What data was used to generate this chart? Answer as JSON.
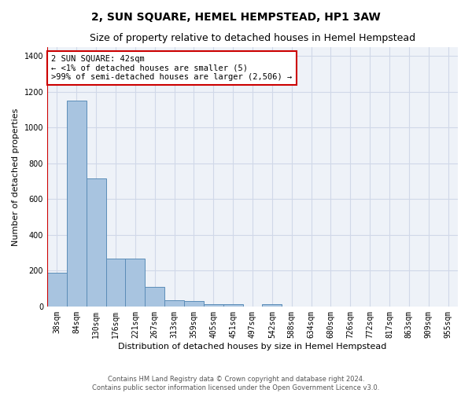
{
  "title": "2, SUN SQUARE, HEMEL HEMPSTEAD, HP1 3AW",
  "subtitle": "Size of property relative to detached houses in Hemel Hempstead",
  "xlabel": "Distribution of detached houses by size in Hemel Hempstead",
  "ylabel": "Number of detached properties",
  "categories": [
    "38sqm",
    "84sqm",
    "130sqm",
    "176sqm",
    "221sqm",
    "267sqm",
    "313sqm",
    "359sqm",
    "405sqm",
    "451sqm",
    "497sqm",
    "542sqm",
    "588sqm",
    "634sqm",
    "680sqm",
    "726sqm",
    "772sqm",
    "817sqm",
    "863sqm",
    "909sqm",
    "955sqm"
  ],
  "values": [
    190,
    1150,
    715,
    270,
    270,
    110,
    35,
    30,
    15,
    12,
    0,
    15,
    0,
    0,
    0,
    0,
    0,
    0,
    0,
    0,
    0
  ],
  "bar_color": "#a8c4e0",
  "bar_edge_color": "#5b8db8",
  "vline_color": "#cc0000",
  "annotation_line1": "2 SUN SQUARE: 42sqm",
  "annotation_line2": "← <1% of detached houses are smaller (5)",
  "annotation_line3": ">99% of semi-detached houses are larger (2,506) →",
  "annotation_box_color": "#ffffff",
  "annotation_box_edgecolor": "#cc0000",
  "ylim": [
    0,
    1450
  ],
  "yticks": [
    0,
    200,
    400,
    600,
    800,
    1000,
    1200,
    1400
  ],
  "grid_color": "#d0d8e8",
  "background_color": "#eef2f8",
  "footer_line1": "Contains HM Land Registry data © Crown copyright and database right 2024.",
  "footer_line2": "Contains public sector information licensed under the Open Government Licence v3.0.",
  "title_fontsize": 10,
  "subtitle_fontsize": 9,
  "axis_label_fontsize": 8,
  "tick_fontsize": 7,
  "annotation_fontsize": 7.5,
  "footer_fontsize": 6
}
